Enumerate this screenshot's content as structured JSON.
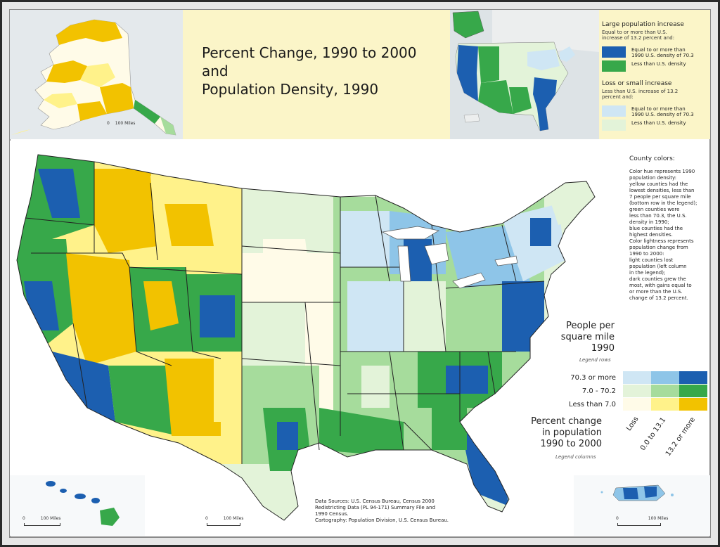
{
  "title": "Percent Change, 1990 to 2000\nand\nPopulation Density, 1990",
  "colors": {
    "loss_low": "#fffbe8",
    "small_low": "#fff28a",
    "large_low": "#f2c200",
    "loss_mid": "#e3f3d9",
    "small_mid": "#a6dc9c",
    "large_mid": "#37a84a",
    "loss_high": "#cfe6f4",
    "small_high": "#8ec5e8",
    "large_high": "#1c5fb0",
    "state_line": "#222222",
    "water": "#dde3e6"
  },
  "legend_top": {
    "large_heading": "Large population increase",
    "large_sub": "Equal to or more than U.S.\nincrease of 13.2 percent and:",
    "large_items": [
      {
        "label": "Equal to or more than\n1990 U.S. density of 70.3",
        "color": "#1c5fb0"
      },
      {
        "label": "Less than U.S. density",
        "color": "#37a84a"
      }
    ],
    "small_heading": "Loss or small increase",
    "small_sub": "Less than U.S. increase of 13.2\npercent and:",
    "small_items": [
      {
        "label": "Equal to or more than\n1990 U.S. density of 70.3",
        "color": "#cfe6f4"
      },
      {
        "label": "Less than U.S. density",
        "color": "#e3f3d9"
      }
    ]
  },
  "side": {
    "heading": "County colors:",
    "body": "Color hue represents 1990\npopulation density:\nyellow counties had the\nlowest densities, less than\n7 people per square mile\n(bottom row in the legend);\ngreen counties were\nless than 70.3, the U.S.\ndensity in 1990;\nblue counties had the\nhighest densities.\nColor lightness represents\npopulation change from\n1990 to 2000:\nlight counties lost\npopulation (left column\nin the legend);\ndark counties grew the\nmost, with gains equal to\nor more than the U.S.\nchange of 13.2 percent."
  },
  "legend_main": {
    "rows_heading": "People per\nsquare mile\n1990",
    "rows_note": "Legend rows",
    "rows": [
      "70.3 or more",
      "7.0 - 70.2",
      "Less than 7.0"
    ],
    "cols_heading": "Percent change\nin population\n1990 to 2000",
    "cols_note": "Legend columns",
    "cols": [
      "Loss",
      "0.0 to 13.1",
      "13.2 or more"
    ],
    "grid": [
      [
        "#cfe6f4",
        "#8ec5e8",
        "#1c5fb0"
      ],
      [
        "#e3f3d9",
        "#a6dc9c",
        "#37a84a"
      ],
      [
        "#fffbe8",
        "#fff28a",
        "#f2c200"
      ]
    ]
  },
  "scale_label": "100 Miles",
  "scale_zero": "0",
  "sources": "Data Sources: U.S. Census Bureau, Census 2000\nRedistricting Data (PL 94-171) Summary File and\n1990 Census.\nCartography: Population Division, U.S. Census Bureau."
}
